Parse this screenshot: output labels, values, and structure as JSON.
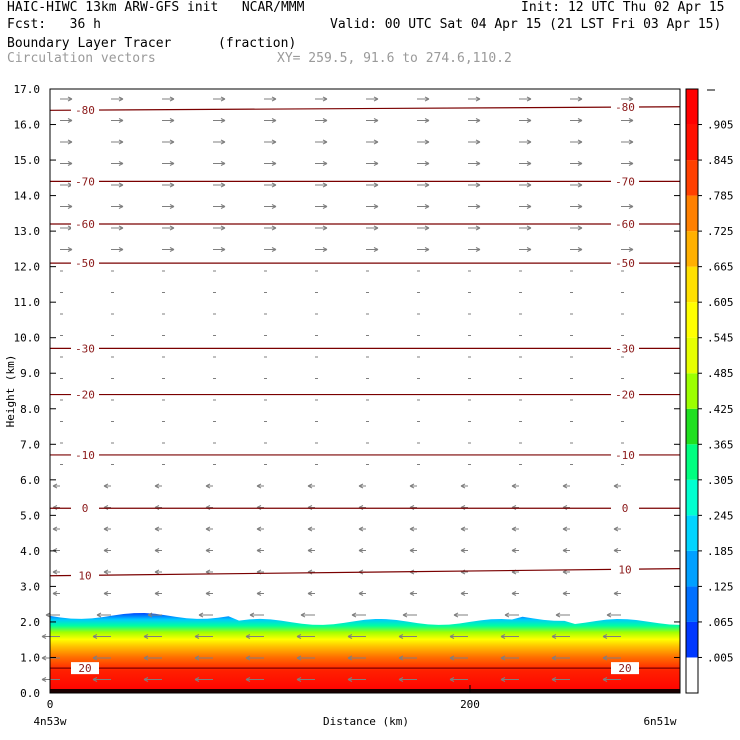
{
  "header": {
    "model": "HAIC-HIWC 13km ARW-GFS init",
    "center": "NCAR/MMM",
    "init": "Init: 12 UTC Thu 02 Apr 15",
    "fcst_label": "Fcst:",
    "fcst_value": "36 h",
    "valid": "Valid: 00 UTC Sat 04 Apr 15 (21 LST Fri 03 Apr 15)",
    "field_name": "Boundary Layer Tracer",
    "field_units": "(fraction)",
    "vector_name": "Circulation vectors",
    "xsec_coords": "XY= 259.5, 91.6 to 274.6,110.2"
  },
  "colors": {
    "contour": "#7a0000",
    "vector": "#7f7f7f"
  },
  "chart_data": {
    "type": "heatmap",
    "xlabel": "Distance (km)",
    "ylabel": "Height (km)",
    "xlim": [
      0,
      300
    ],
    "ylim": [
      0,
      17
    ],
    "x_ticks": [
      "0",
      "200"
    ],
    "y_ticks": [
      "0.0",
      "1.0",
      "2.0",
      "3.0",
      "4.0",
      "5.0",
      "6.0",
      "7.0",
      "8.0",
      "9.0",
      "10.0",
      "11.0",
      "12.0",
      "13.0",
      "14.0",
      "15.0",
      "16.0",
      "17.0"
    ],
    "left_endpoint": "4n53w",
    "right_endpoint": "6n51w",
    "colorbar": {
      "labels": [
        ".005",
        ".065",
        ".125",
        ".185",
        ".245",
        ".305",
        ".365",
        ".425",
        ".485",
        ".545",
        ".605",
        ".665",
        ".725",
        ".785",
        ".845",
        ".905"
      ],
      "colors": [
        "#ffffff",
        "#0038ff",
        "#0070ff",
        "#00a0ff",
        "#00d4ff",
        "#00ffd0",
        "#00ff80",
        "#20e020",
        "#9cff00",
        "#e6ff00",
        "#ffff00",
        "#ffe000",
        "#ffb000",
        "#ff8000",
        "#ff4000",
        "#ff1000",
        "#ff0000"
      ]
    },
    "temperature_contours": [
      {
        "label": "-80",
        "left_height": 16.4,
        "right_height": 16.5
      },
      {
        "label": "-70",
        "left_height": 14.4,
        "right_height": 14.4
      },
      {
        "label": "-60",
        "left_height": 13.2,
        "right_height": 13.2
      },
      {
        "label": "-50",
        "left_height": 12.1,
        "right_height": 12.1
      },
      {
        "label": "-30",
        "left_height": 9.7,
        "right_height": 9.7
      },
      {
        "label": "-20",
        "left_height": 8.4,
        "right_height": 8.4
      },
      {
        "label": "-10",
        "left_height": 6.7,
        "right_height": 6.7
      },
      {
        "label": "0",
        "left_height": 5.2,
        "right_height": 5.2
      },
      {
        "label": "10",
        "left_height": 3.3,
        "right_height": 3.5
      },
      {
        "label": "20",
        "left_height": 0.7,
        "right_height": 0.7
      }
    ],
    "tracer_top_km": 2.0
  }
}
